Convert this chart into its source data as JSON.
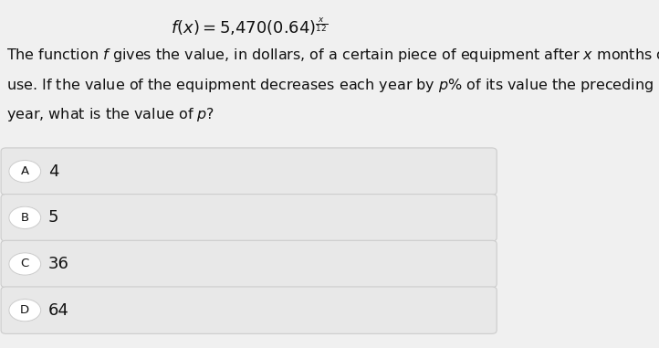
{
  "title_formula": "f(x) = 5,470(0.64)",
  "title_base": "f(x) = 5,470(0.64)",
  "exponent": "x/12",
  "body_text_line1": "The function $f$ gives the value, in dollars, of a certain piece of equipment after $x$ months of",
  "body_text_line2": "use. If the value of the equipment decreases each year by $p\\%$ of its value the preceding",
  "body_text_line3": "year, what is the value of $p$?",
  "choices": [
    {
      "label": "A",
      "text": "4"
    },
    {
      "label": "B",
      "text": "5"
    },
    {
      "label": "C",
      "text": "36"
    },
    {
      "label": "D",
      "text": "64"
    }
  ],
  "bg_color": "#f0f0f0",
  "box_color": "#e8e8e8",
  "box_edge_color": "#cccccc",
  "text_color": "#111111",
  "title_fontsize": 13,
  "body_fontsize": 11.5,
  "choice_fontsize": 13
}
